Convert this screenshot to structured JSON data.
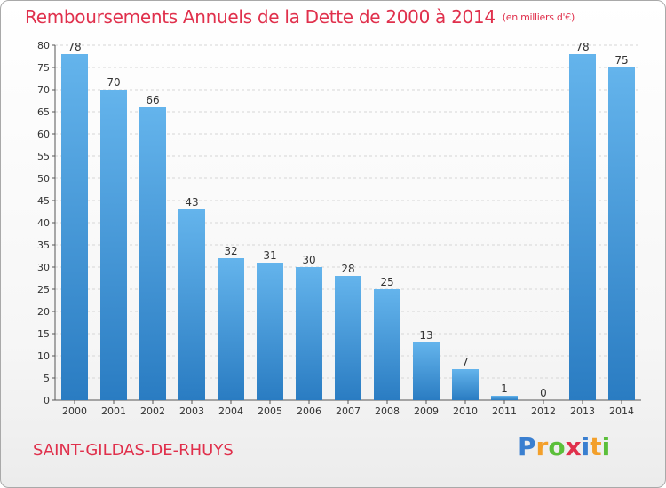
{
  "header": {
    "title": "Remboursements Annuels de la Dette de 2000 à 2014",
    "unit": "(en milliers d'€)"
  },
  "footer": {
    "commune": "SAINT-GILDAS-DE-RHUYS",
    "logo": "Proxiti"
  },
  "colors": {
    "title": "#e0304c",
    "bar_top": "#64b4ec",
    "bar_bottom": "#2a7cc2"
  },
  "chart_data": {
    "type": "bar",
    "categories": [
      "2000",
      "2001",
      "2002",
      "2003",
      "2004",
      "2005",
      "2006",
      "2007",
      "2008",
      "2009",
      "2010",
      "2011",
      "2012",
      "2013",
      "2014"
    ],
    "values": [
      78,
      70,
      66,
      43,
      32,
      31,
      30,
      28,
      25,
      13,
      7,
      1,
      0,
      78,
      75
    ],
    "ylim": [
      0,
      80
    ],
    "yticks": [
      0,
      5,
      10,
      15,
      20,
      25,
      30,
      35,
      40,
      45,
      50,
      55,
      60,
      65,
      70,
      75,
      80
    ],
    "grid": true,
    "legend": "none"
  }
}
